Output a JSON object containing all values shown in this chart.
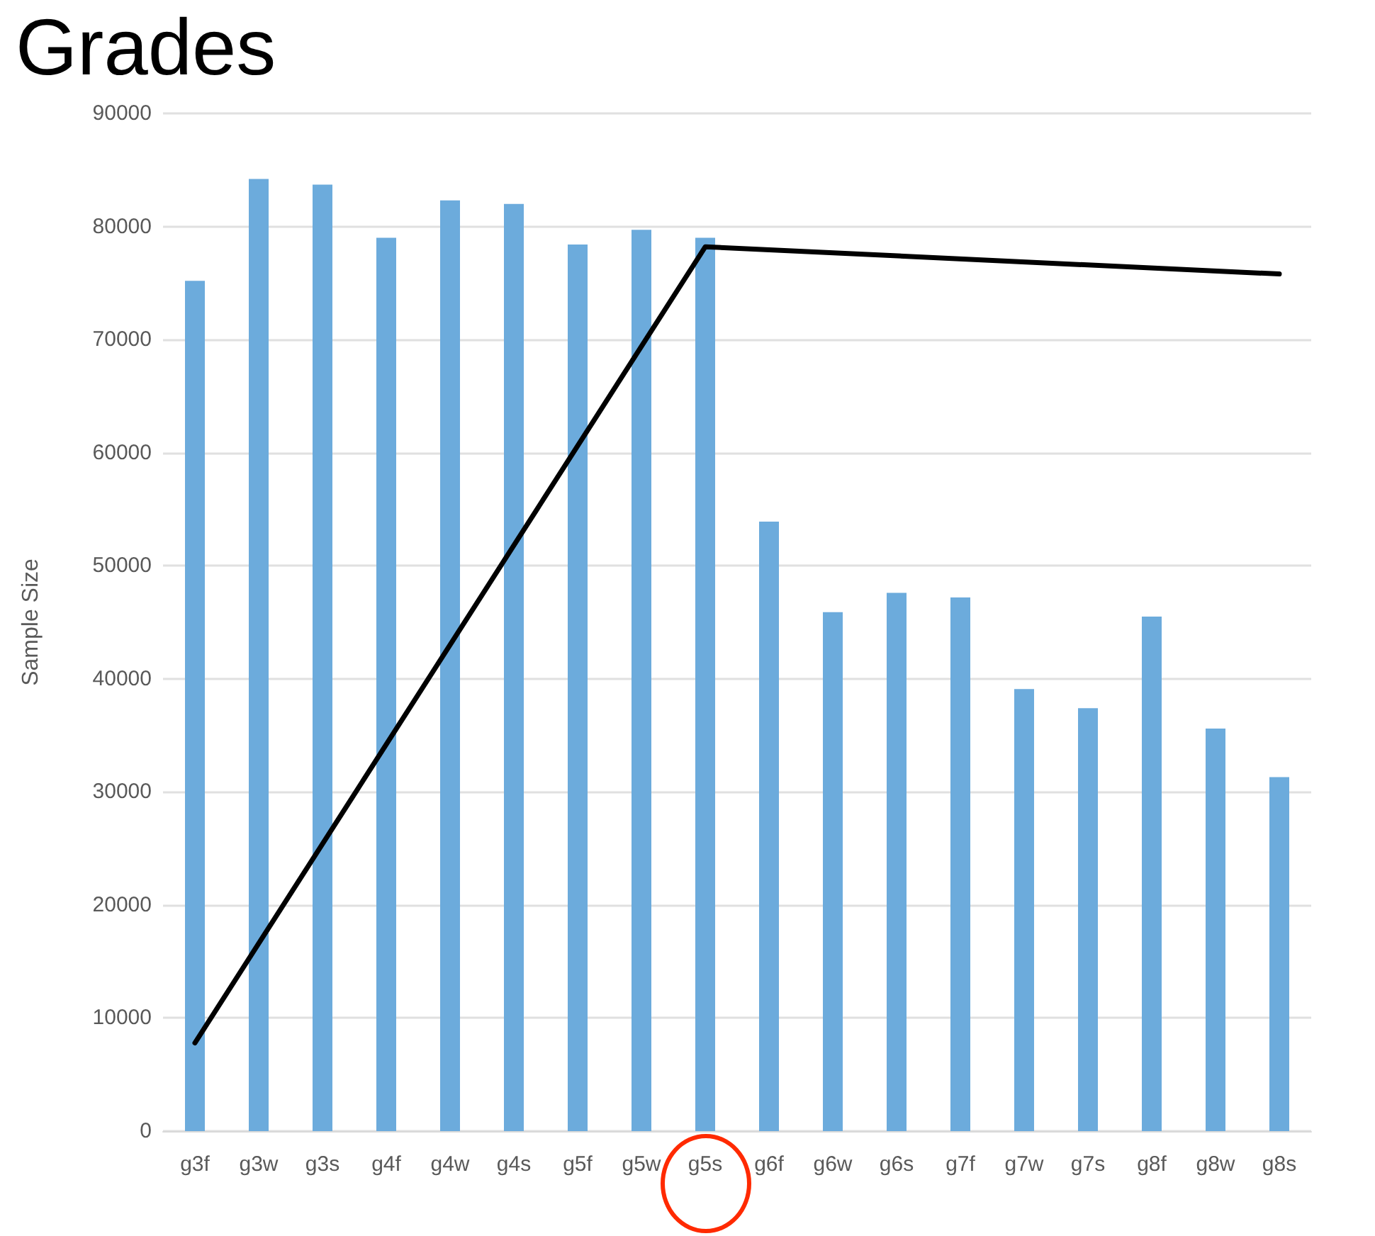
{
  "chart_data": {
    "type": "bar",
    "title": "Grades",
    "ylabel": "Sample Size",
    "categories": [
      "g3f",
      "g3w",
      "g3s",
      "g4f",
      "g4w",
      "g4s",
      "g5f",
      "g5w",
      "g5s",
      "g6f",
      "g6w",
      "g6s",
      "g7f",
      "g7w",
      "g7s",
      "g8f",
      "g8w",
      "g8s"
    ],
    "series": [
      {
        "color": "#6cabdc",
        "values": [
          75200,
          84200,
          83700,
          79000,
          82300,
          82000,
          78400,
          79700,
          79000,
          53900,
          45900,
          47600,
          47200,
          39100,
          37400,
          45500,
          35600,
          31300
        ]
      },
      {
        "type": "line",
        "color": "#000000",
        "x": [
          "g3f",
          "g5s",
          "g8s"
        ],
        "values": [
          7800,
          78200,
          75800
        ]
      }
    ],
    "ylim": [
      0,
      90000
    ],
    "yticks": [
      0,
      10000,
      20000,
      30000,
      40000,
      50000,
      60000,
      70000,
      80000,
      90000
    ],
    "grid": "y",
    "marker": "none",
    "line_style": "solid"
  }
}
